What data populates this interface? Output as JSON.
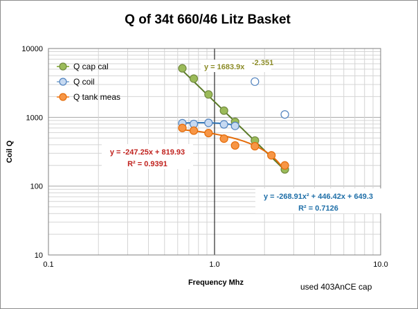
{
  "chart_data": {
    "type": "scatter",
    "title": "Q of 34t  660/46 Litz Basket",
    "xlabel": "Frequency Mhz",
    "ylabel": "Coil  Q",
    "x_scale": "log",
    "y_scale": "log",
    "xlim": [
      0.1,
      10
    ],
    "ylim": [
      10,
      10000
    ],
    "x_ticks": [
      "0.1",
      "1.0",
      "10.0"
    ],
    "y_ticks": [
      "10",
      "100",
      "1000",
      "10000"
    ],
    "grid": true,
    "legend_position": "top-left",
    "note": "used 403AnCE cap",
    "series": [
      {
        "name": "Q cap cal",
        "color": "#9bbb59",
        "points": [
          [
            0.64,
            5150
          ],
          [
            0.75,
            3650
          ],
          [
            0.92,
            2150
          ],
          [
            1.14,
            1250
          ],
          [
            1.33,
            860
          ],
          [
            1.75,
            460
          ],
          [
            2.65,
            175
          ]
        ],
        "trendline": {
          "kind": "power",
          "a": 1683.9,
          "b": -2.351,
          "color": "#5a7a28",
          "x_range": [
            0.64,
            2.65
          ]
        },
        "equation": {
          "text": "y = 1683.9x",
          "exponent": "-2.351",
          "color": "#8c8c28"
        }
      },
      {
        "name": "Q coil",
        "color": "#9bbbdb",
        "points": [
          [
            0.64,
            820
          ],
          [
            0.75,
            800
          ],
          [
            0.92,
            830
          ],
          [
            1.14,
            790
          ],
          [
            1.33,
            750
          ],
          [
            1.75,
            3300
          ],
          [
            2.65,
            1100
          ]
        ],
        "trendline": {
          "kind": "quadratic",
          "a": -268.91,
          "b": 446.42,
          "c": 649.3,
          "color": "#2e75b6",
          "x_range": [
            0.64,
            1.33
          ]
        },
        "equation": {
          "line1": "y = -268.91x² + 446.42x + 649.3",
          "line2": "R² = 0.7126",
          "color": "#1f6fa8"
        }
      },
      {
        "name": "Q tank meas",
        "color": "#f79646",
        "points": [
          [
            0.64,
            700
          ],
          [
            0.75,
            640
          ],
          [
            0.92,
            590
          ],
          [
            1.14,
            490
          ],
          [
            1.33,
            390
          ],
          [
            1.75,
            380
          ],
          [
            2.2,
            280
          ],
          [
            2.65,
            200
          ]
        ],
        "trendline": {
          "kind": "linear",
          "a": -247.25,
          "b": 819.93,
          "color": "#e46c0a",
          "x_range": [
            0.64,
            2.65
          ]
        },
        "equation": {
          "line1": "y = -247.25x + 819.93",
          "line2": "R² = 0.9391",
          "color": "#c0221e"
        }
      }
    ]
  }
}
